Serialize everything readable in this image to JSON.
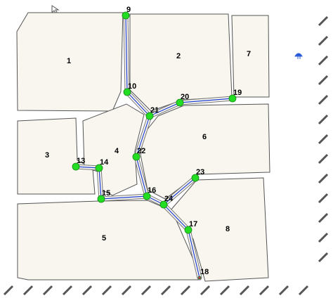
{
  "parcels": [
    {
      "label": "1"
    },
    {
      "label": "2"
    },
    {
      "label": "7"
    },
    {
      "label": "3"
    },
    {
      "label": "4"
    },
    {
      "label": "6"
    },
    {
      "label": "5"
    },
    {
      "label": "8"
    }
  ],
  "nodes": [
    {
      "label": "9"
    },
    {
      "label": "10"
    },
    {
      "label": "21"
    },
    {
      "label": "20"
    },
    {
      "label": "19"
    },
    {
      "label": "22"
    },
    {
      "label": "23"
    },
    {
      "label": "13"
    },
    {
      "label": "14"
    },
    {
      "label": "15"
    },
    {
      "label": "16"
    },
    {
      "label": "24"
    },
    {
      "label": "17"
    },
    {
      "label": "18"
    }
  ]
}
